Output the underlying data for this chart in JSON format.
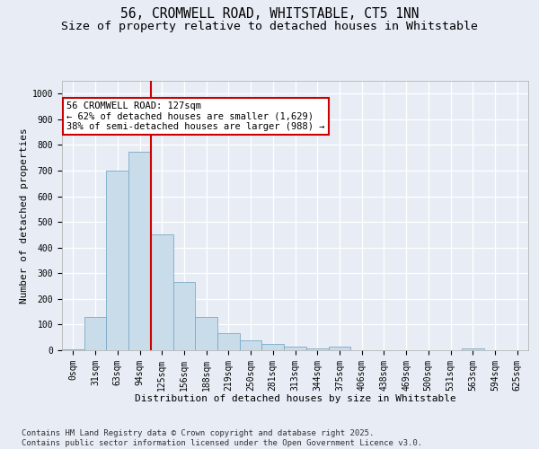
{
  "title": "56, CROMWELL ROAD, WHITSTABLE, CT5 1NN",
  "subtitle": "Size of property relative to detached houses in Whitstable",
  "xlabel": "Distribution of detached houses by size in Whitstable",
  "ylabel": "Number of detached properties",
  "bar_color": "#c9dcea",
  "bar_edge_color": "#7aaac8",
  "vline_color": "#cc0000",
  "vline_bin_index": 3,
  "categories": [
    "0sqm",
    "31sqm",
    "63sqm",
    "94sqm",
    "125sqm",
    "156sqm",
    "188sqm",
    "219sqm",
    "250sqm",
    "281sqm",
    "313sqm",
    "344sqm",
    "375sqm",
    "406sqm",
    "438sqm",
    "469sqm",
    "500sqm",
    "531sqm",
    "563sqm",
    "594sqm",
    "625sqm"
  ],
  "values": [
    2,
    128,
    700,
    775,
    450,
    265,
    130,
    65,
    40,
    25,
    15,
    8,
    15,
    0,
    0,
    0,
    0,
    0,
    8,
    0,
    0
  ],
  "ylim": [
    0,
    1050
  ],
  "yticks": [
    0,
    100,
    200,
    300,
    400,
    500,
    600,
    700,
    800,
    900,
    1000
  ],
  "annotation_line1": "56 CROMWELL ROAD: 127sqm",
  "annotation_line2": "← 62% of detached houses are smaller (1,629)",
  "annotation_line3": "38% of semi-detached houses are larger (988) →",
  "footnote": "Contains HM Land Registry data © Crown copyright and database right 2025.\nContains public sector information licensed under the Open Government Licence v3.0.",
  "background_color": "#e8edf5",
  "grid_color": "#ffffff",
  "title_fontsize": 10.5,
  "subtitle_fontsize": 9.5,
  "label_fontsize": 8,
  "tick_fontsize": 7,
  "ann_fontsize": 7.5,
  "footnote_fontsize": 6.5
}
